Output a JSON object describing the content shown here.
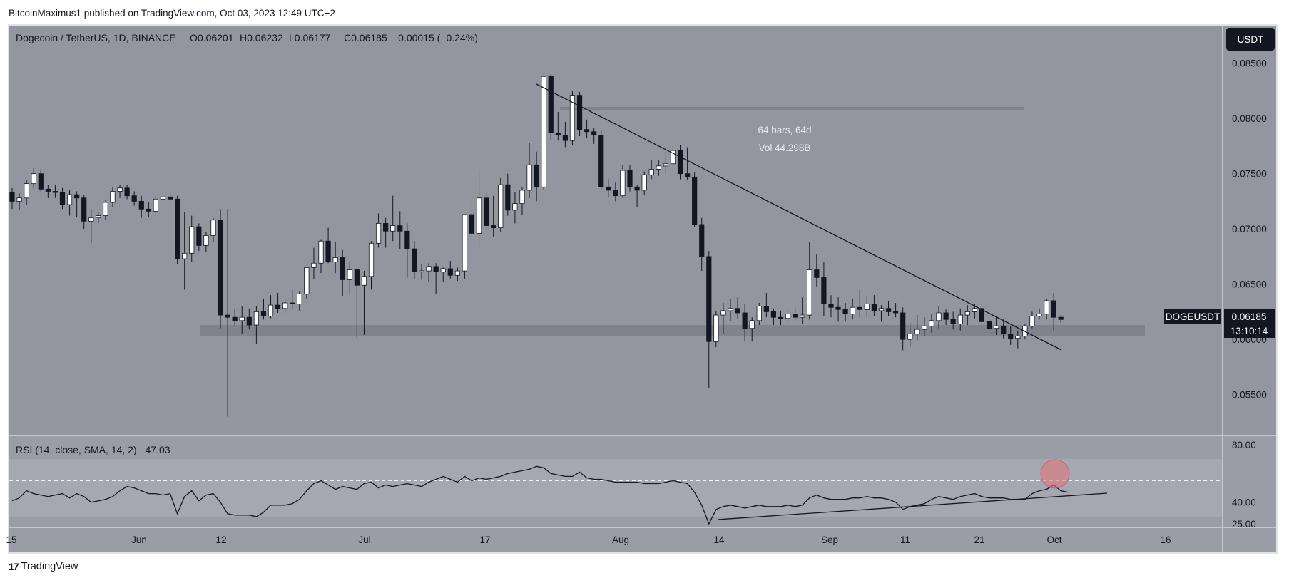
{
  "attribution": "BitcoinMaximus1 published on TradingView.com, Oct 03, 2023 12:49 UTC+2",
  "brand": "TradingView",
  "brand_mark": "17",
  "colors": {
    "panel_bg": "#93969f",
    "rsi_bg": "#9a9da5",
    "rsi_band": "#a5a8b0",
    "support_zone": "#7f838c",
    "up_candle": "#ffffff",
    "down_candle": "#131722",
    "label_bg": "#131722",
    "highlight": "#e5737a"
  },
  "header": {
    "symbol": "Dogecoin / TetherUS, 1D, BINANCE",
    "o_label": "O",
    "o_value": "0.06201",
    "h_label": "H",
    "h_value": "0.06232",
    "l_label": "L",
    "l_value": "0.06177",
    "c_label": "C",
    "c_value": "0.06185",
    "change": "−0.00015 (−0.24%)"
  },
  "currency_button": "USDT",
  "price_label": {
    "symbol": "DOGEUSDT",
    "price": "0.06185",
    "countdown": "13:10:14"
  },
  "measure": {
    "bars": "64 bars, 64d",
    "vol": "Vol 44.298B"
  },
  "rsi": {
    "label": "RSI (14, close, SMA, 14, 2)",
    "value": "47.03",
    "ticks": [
      "80.00",
      "40.00",
      "25.00"
    ]
  },
  "chart_data": [
    {
      "type": "candlestick",
      "title": "Dogecoin / TetherUS, 1D, BINANCE",
      "ylabel": "USDT",
      "ylim": [
        0.0513,
        0.0884
      ],
      "y_ticks": [
        "0.08500",
        "0.08000",
        "0.07500",
        "0.07000",
        "0.06500",
        "0.06000",
        "0.05500"
      ],
      "x_ticks": [
        "15",
        "Jun",
        "12",
        "Jul",
        "17",
        "Aug",
        "14",
        "Sep",
        "11",
        "21",
        "Oct",
        "16"
      ],
      "candles": [
        [
          0.0733,
          0.0737,
          0.0718,
          0.0725
        ],
        [
          0.0725,
          0.0732,
          0.0717,
          0.0728
        ],
        [
          0.0728,
          0.0744,
          0.0722,
          0.0741
        ],
        [
          0.0741,
          0.0755,
          0.0737,
          0.075
        ],
        [
          0.075,
          0.0754,
          0.0733,
          0.0736
        ],
        [
          0.0736,
          0.074,
          0.0728,
          0.0734
        ],
        [
          0.0734,
          0.074,
          0.0728,
          0.0733
        ],
        [
          0.0733,
          0.0737,
          0.0718,
          0.0722
        ],
        [
          0.0722,
          0.0735,
          0.0712,
          0.0731
        ],
        [
          0.0731,
          0.0734,
          0.0711,
          0.0728
        ],
        [
          0.0728,
          0.0731,
          0.07,
          0.0707
        ],
        [
          0.0707,
          0.0718,
          0.0687,
          0.071
        ],
        [
          0.071,
          0.0715,
          0.0705,
          0.0712
        ],
        [
          0.0712,
          0.0726,
          0.0708,
          0.0724
        ],
        [
          0.0724,
          0.0738,
          0.072,
          0.0734
        ],
        [
          0.0734,
          0.074,
          0.0728,
          0.0737
        ],
        [
          0.0737,
          0.074,
          0.0727,
          0.073
        ],
        [
          0.073,
          0.0734,
          0.0721,
          0.0725
        ],
        [
          0.0725,
          0.073,
          0.071,
          0.0718
        ],
        [
          0.0718,
          0.0724,
          0.0711,
          0.0716
        ],
        [
          0.0716,
          0.073,
          0.0712,
          0.0727
        ],
        [
          0.0727,
          0.0733,
          0.0722,
          0.0729
        ],
        [
          0.0729,
          0.0733,
          0.0724,
          0.0727
        ],
        [
          0.0727,
          0.073,
          0.0668,
          0.0673
        ],
        [
          0.0673,
          0.0715,
          0.0645,
          0.0678
        ],
        [
          0.0678,
          0.0712,
          0.067,
          0.0702
        ],
        [
          0.0702,
          0.0705,
          0.068,
          0.0685
        ],
        [
          0.0685,
          0.0697,
          0.0679,
          0.0694
        ],
        [
          0.0694,
          0.071,
          0.0688,
          0.0708
        ],
        [
          0.0708,
          0.0718,
          0.061,
          0.0622
        ],
        [
          0.0622,
          0.0718,
          0.053,
          0.062
        ],
        [
          0.062,
          0.0628,
          0.0612,
          0.0617
        ],
        [
          0.0617,
          0.063,
          0.0605,
          0.062
        ],
        [
          0.062,
          0.0628,
          0.0609,
          0.0613
        ],
        [
          0.0613,
          0.063,
          0.0596,
          0.0625
        ],
        [
          0.0625,
          0.0637,
          0.0618,
          0.0621
        ],
        [
          0.0621,
          0.064,
          0.0619,
          0.0631
        ],
        [
          0.0631,
          0.0642,
          0.0624,
          0.0628
        ],
        [
          0.0628,
          0.0636,
          0.0624,
          0.0633
        ],
        [
          0.0633,
          0.0645,
          0.0627,
          0.0632
        ],
        [
          0.0632,
          0.0644,
          0.0626,
          0.0641
        ],
        [
          0.0641,
          0.0665,
          0.0637,
          0.0665
        ],
        [
          0.0665,
          0.0683,
          0.0655,
          0.0669
        ],
        [
          0.0669,
          0.069,
          0.066,
          0.0689
        ],
        [
          0.0689,
          0.0701,
          0.0669,
          0.067
        ],
        [
          0.067,
          0.0688,
          0.066,
          0.0674
        ],
        [
          0.0674,
          0.0681,
          0.0639,
          0.0654
        ],
        [
          0.0654,
          0.067,
          0.064,
          0.0663
        ],
        [
          0.0663,
          0.0665,
          0.0601,
          0.0649
        ],
        [
          0.0649,
          0.0662,
          0.0604,
          0.0657
        ],
        [
          0.0657,
          0.0689,
          0.0645,
          0.0687
        ],
        [
          0.0687,
          0.0714,
          0.0683,
          0.0705
        ],
        [
          0.0705,
          0.071,
          0.0683,
          0.0698
        ],
        [
          0.0698,
          0.073,
          0.0689,
          0.0703
        ],
        [
          0.0703,
          0.0716,
          0.0682,
          0.0698
        ],
        [
          0.0698,
          0.0705,
          0.0656,
          0.0682
        ],
        [
          0.0682,
          0.0689,
          0.0655,
          0.0661
        ],
        [
          0.0661,
          0.0668,
          0.0654,
          0.0662
        ],
        [
          0.0662,
          0.0669,
          0.0652,
          0.0666
        ],
        [
          0.0666,
          0.0669,
          0.0641,
          0.0661
        ],
        [
          0.0661,
          0.0665,
          0.0652,
          0.0664
        ],
        [
          0.0664,
          0.0671,
          0.0655,
          0.0658
        ],
        [
          0.0658,
          0.0665,
          0.0653,
          0.0662
        ],
        [
          0.0662,
          0.0713,
          0.0655,
          0.0713
        ],
        [
          0.0713,
          0.0728,
          0.069,
          0.0696
        ],
        [
          0.0696,
          0.0752,
          0.0684,
          0.0728
        ],
        [
          0.0728,
          0.0734,
          0.0699,
          0.0703
        ],
        [
          0.0703,
          0.073,
          0.0693,
          0.0701
        ],
        [
          0.0701,
          0.0746,
          0.0697,
          0.074
        ],
        [
          0.074,
          0.075,
          0.0712,
          0.0717
        ],
        [
          0.0717,
          0.0733,
          0.0705,
          0.0723
        ],
        [
          0.0723,
          0.0738,
          0.0713,
          0.0735
        ],
        [
          0.0735,
          0.0778,
          0.0728,
          0.0758
        ],
        [
          0.0758,
          0.077,
          0.0725,
          0.0738
        ],
        [
          0.0738,
          0.0839,
          0.0735,
          0.0838
        ],
        [
          0.0838,
          0.084,
          0.078,
          0.0787
        ],
        [
          0.0787,
          0.0806,
          0.078,
          0.0785
        ],
        [
          0.0785,
          0.0797,
          0.0774,
          0.078
        ],
        [
          0.078,
          0.0825,
          0.0776,
          0.0821
        ],
        [
          0.0821,
          0.0824,
          0.0784,
          0.079
        ],
        [
          0.079,
          0.0799,
          0.0782,
          0.0788
        ],
        [
          0.0788,
          0.0791,
          0.0777,
          0.0785
        ],
        [
          0.0785,
          0.0789,
          0.0736,
          0.0738
        ],
        [
          0.0738,
          0.0745,
          0.0729,
          0.0735
        ],
        [
          0.0735,
          0.0742,
          0.0725,
          0.073
        ],
        [
          0.073,
          0.0758,
          0.0728,
          0.0753
        ],
        [
          0.0753,
          0.0758,
          0.0734,
          0.0738
        ],
        [
          0.0738,
          0.074,
          0.072,
          0.0735
        ],
        [
          0.0735,
          0.0752,
          0.0731,
          0.0749
        ],
        [
          0.0749,
          0.0762,
          0.0745,
          0.0754
        ],
        [
          0.0754,
          0.0762,
          0.0748,
          0.0757
        ],
        [
          0.0757,
          0.077,
          0.075,
          0.0759
        ],
        [
          0.0759,
          0.0775,
          0.0752,
          0.0771
        ],
        [
          0.0771,
          0.0776,
          0.0745,
          0.075
        ],
        [
          0.075,
          0.0774,
          0.0744,
          0.0747
        ],
        [
          0.0747,
          0.0751,
          0.0702,
          0.0704
        ],
        [
          0.0704,
          0.071,
          0.0662,
          0.0675
        ],
        [
          0.0675,
          0.068,
          0.0556,
          0.0598
        ],
        [
          0.0598,
          0.0626,
          0.0593,
          0.0622
        ],
        [
          0.0622,
          0.0633,
          0.0605,
          0.0626
        ],
        [
          0.0626,
          0.0637,
          0.0617,
          0.0628
        ],
        [
          0.0628,
          0.0638,
          0.0619,
          0.0624
        ],
        [
          0.0624,
          0.0632,
          0.0598,
          0.061
        ],
        [
          0.061,
          0.062,
          0.0598,
          0.0617
        ],
        [
          0.0617,
          0.0633,
          0.0613,
          0.063
        ],
        [
          0.063,
          0.0642,
          0.062,
          0.0625
        ],
        [
          0.0625,
          0.0628,
          0.0613,
          0.062
        ],
        [
          0.062,
          0.0626,
          0.0613,
          0.0619
        ],
        [
          0.0619,
          0.0627,
          0.0614,
          0.0623
        ],
        [
          0.0623,
          0.0629,
          0.0617,
          0.062
        ],
        [
          0.062,
          0.0638,
          0.0614,
          0.0622
        ],
        [
          0.0622,
          0.0688,
          0.0618,
          0.0663
        ],
        [
          0.0663,
          0.0677,
          0.0648,
          0.0656
        ],
        [
          0.0656,
          0.067,
          0.0621,
          0.0632
        ],
        [
          0.0632,
          0.064,
          0.062,
          0.0629
        ],
        [
          0.0629,
          0.0638,
          0.0616,
          0.0627
        ],
        [
          0.0627,
          0.0633,
          0.0616,
          0.0623
        ],
        [
          0.0623,
          0.0637,
          0.0618,
          0.0629
        ],
        [
          0.0629,
          0.0645,
          0.062,
          0.0627
        ],
        [
          0.0627,
          0.0639,
          0.062,
          0.0632
        ],
        [
          0.0632,
          0.064,
          0.0621,
          0.0626
        ],
        [
          0.0626,
          0.0631,
          0.0616,
          0.0628
        ],
        [
          0.0628,
          0.0635,
          0.0621,
          0.0625
        ],
        [
          0.0625,
          0.0633,
          0.062,
          0.0624
        ],
        [
          0.0624,
          0.0629,
          0.059,
          0.06
        ],
        [
          0.06,
          0.0615,
          0.0593,
          0.0605
        ],
        [
          0.0605,
          0.0622,
          0.0599,
          0.0609
        ],
        [
          0.0609,
          0.062,
          0.0603,
          0.0612
        ],
        [
          0.0612,
          0.0623,
          0.0606,
          0.0617
        ],
        [
          0.0617,
          0.063,
          0.061,
          0.0624
        ],
        [
          0.0624,
          0.0627,
          0.0613,
          0.0618
        ],
        [
          0.0618,
          0.0625,
          0.0609,
          0.0614
        ],
        [
          0.0614,
          0.0628,
          0.0608,
          0.0622
        ],
        [
          0.0622,
          0.0631,
          0.0613,
          0.0625
        ],
        [
          0.0625,
          0.0632,
          0.0619,
          0.0628
        ],
        [
          0.0628,
          0.0633,
          0.0613,
          0.0616
        ],
        [
          0.0616,
          0.0622,
          0.0607,
          0.061
        ],
        [
          0.061,
          0.062,
          0.0604,
          0.0612
        ],
        [
          0.0612,
          0.0618,
          0.0601,
          0.0605
        ],
        [
          0.0605,
          0.0612,
          0.0595,
          0.0601
        ],
        [
          0.0601,
          0.0608,
          0.0592,
          0.0603
        ],
        [
          0.0603,
          0.0614,
          0.06,
          0.0612
        ],
        [
          0.0612,
          0.0625,
          0.061,
          0.0621
        ],
        [
          0.0621,
          0.0628,
          0.0618,
          0.0623
        ],
        [
          0.0623,
          0.0637,
          0.0618,
          0.0635
        ],
        [
          0.0635,
          0.0642,
          0.0608,
          0.062
        ],
        [
          0.062,
          0.0622,
          0.0615,
          0.0618
        ]
      ]
    },
    {
      "type": "line",
      "title": "RSI (14, close, SMA, 14, 2)",
      "ylim": [
        22.5,
        86
      ],
      "y_ticks": [
        "80.00",
        "40.00",
        "25.00"
      ],
      "upper_band": 70,
      "lower_band": 30,
      "mid_line": 55,
      "values": [
        41,
        43,
        48,
        46,
        45,
        44,
        45,
        46,
        43,
        46,
        44,
        40,
        41,
        42,
        44,
        48,
        51,
        50,
        48,
        46,
        46,
        45,
        46,
        32,
        44,
        48,
        41,
        45,
        46,
        40,
        32,
        31,
        31,
        31,
        30,
        33,
        38,
        38,
        38,
        39,
        42,
        48,
        53,
        55,
        52,
        49,
        51,
        50,
        49,
        53,
        54,
        50,
        52,
        51,
        52,
        53,
        52,
        51,
        54,
        56,
        58,
        56,
        54,
        58,
        55,
        57,
        56,
        57,
        58,
        60,
        61,
        62,
        63,
        65,
        64,
        60,
        59,
        58,
        58,
        61,
        57,
        56,
        56,
        55,
        54,
        54,
        54,
        54,
        53,
        53,
        53,
        54,
        55,
        54,
        53,
        47,
        38,
        25,
        35,
        37,
        38,
        37,
        36,
        37,
        38,
        37,
        37,
        37,
        38,
        37,
        38,
        43,
        45,
        43,
        42,
        42,
        42,
        43,
        43,
        44,
        43,
        43,
        42,
        40,
        35,
        37,
        38,
        39,
        42,
        44,
        43,
        42,
        44,
        45,
        46,
        44,
        43,
        43,
        43,
        42,
        42,
        42,
        46,
        48,
        49,
        52,
        48,
        47
      ],
      "trendline_label_points": [
        "Aug 17 ≈ 25",
        "Oct 12 ≈ 40"
      ]
    }
  ]
}
